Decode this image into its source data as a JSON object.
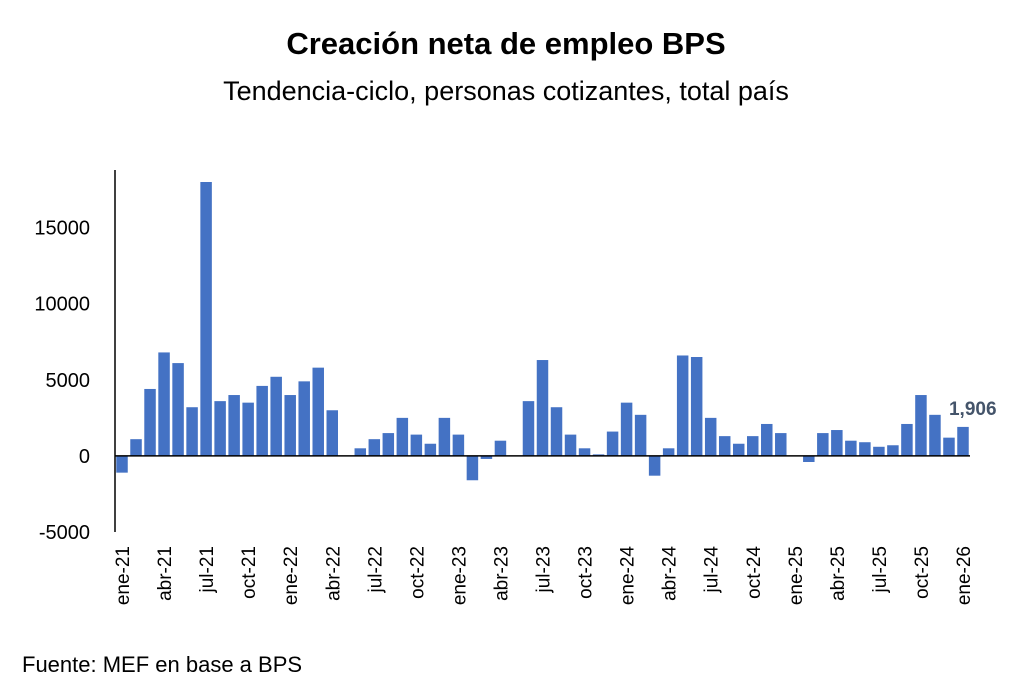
{
  "chart_data": {
    "type": "bar",
    "title": "Creación neta de empleo BPS",
    "subtitle": "Tendencia-ciclo, personas cotizantes, total país",
    "source": "Fuente: MEF en base a BPS",
    "xlabel": "",
    "ylabel": "",
    "ylim": [
      -5000,
      18000
    ],
    "yticks": [
      -5000,
      0,
      5000,
      10000,
      15000
    ],
    "ytick_labels": [
      "-5000",
      "0",
      "5000",
      "10000",
      "15000"
    ],
    "bar_color": "#4472C4",
    "categories": [
      "ene-21",
      "feb-21",
      "mar-21",
      "abr-21",
      "may-21",
      "jun-21",
      "jul-21",
      "ago-21",
      "sep-21",
      "oct-21",
      "nov-21",
      "dic-21",
      "ene-22",
      "feb-22",
      "mar-22",
      "abr-22",
      "may-22",
      "jun-22",
      "jul-22",
      "ago-22",
      "sep-22",
      "oct-22",
      "nov-22",
      "dic-22",
      "ene-23",
      "feb-23",
      "mar-23",
      "abr-23",
      "may-23",
      "jun-23",
      "jul-23",
      "ago-23",
      "sep-23",
      "oct-23",
      "nov-23",
      "dic-23",
      "ene-24",
      "feb-24",
      "mar-24",
      "abr-24",
      "may-24",
      "jun-24",
      "jul-24",
      "ago-24",
      "sep-24",
      "oct-24",
      "nov-24",
      "dic-24",
      "ene-25",
      "feb-25",
      "mar-25",
      "abr-25",
      "may-25",
      "jun-25",
      "jul-25",
      "ago-25",
      "sep-25",
      "oct-25",
      "nov-25",
      "dic-25",
      "ene-26"
    ],
    "xtick_labels": [
      "ene-21",
      "",
      "",
      "abr-21",
      "",
      "",
      "jul-21",
      "",
      "",
      "oct-21",
      "",
      "",
      "ene-22",
      "",
      "",
      "abr-22",
      "",
      "",
      "jul-22",
      "",
      "",
      "oct-22",
      "",
      "",
      "ene-23",
      "",
      "",
      "abr-23",
      "",
      "",
      "jul-23",
      "",
      "",
      "oct-23",
      "",
      "",
      "ene-24",
      "",
      "",
      "abr-24",
      "",
      "",
      "jul-24",
      "",
      "",
      "oct-24",
      "",
      "",
      "ene-25",
      "",
      "",
      "abr-25",
      "",
      "",
      "jul-25",
      "",
      "",
      "oct-25",
      "",
      "",
      "ene-26"
    ],
    "values": [
      -1100,
      1100,
      4400,
      6800,
      6100,
      3200,
      18000,
      3600,
      4000,
      3500,
      4600,
      5200,
      4000,
      4900,
      5800,
      3000,
      0,
      500,
      1100,
      1500,
      2500,
      1400,
      800,
      2500,
      1400,
      -1600,
      -200,
      1000,
      0,
      3600,
      6300,
      3200,
      1400,
      500,
      100,
      1600,
      3500,
      2700,
      -1300,
      500,
      6600,
      6500,
      2500,
      1300,
      800,
      1300,
      2100,
      1500,
      0,
      -400,
      1500,
      1700,
      1000,
      900,
      600,
      700,
      2100,
      4000,
      2700,
      1200,
      1906
    ],
    "last_label": "1,906",
    "last_label_color": "#44546A"
  }
}
